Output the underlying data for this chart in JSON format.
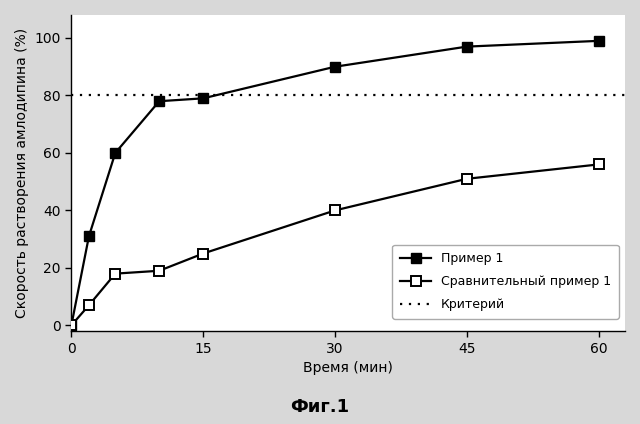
{
  "series1_x": [
    0,
    2,
    5,
    10,
    15,
    30,
    45,
    60
  ],
  "series1_y": [
    0,
    31,
    60,
    78,
    79,
    90,
    97,
    99
  ],
  "series2_x": [
    0,
    2,
    5,
    10,
    15,
    30,
    45,
    60
  ],
  "series2_y": [
    0,
    7,
    18,
    19,
    25,
    40,
    51,
    56
  ],
  "criterion_y": 80,
  "xlabel": "Время (мин)",
  "ylabel": "Скорость растворения амлодипина (%)",
  "title": "Фиг.1",
  "legend_series1": "Пример 1",
  "legend_series2": "Сравнительный пример 1",
  "legend_criterion": "Критерий",
  "xlim": [
    0,
    63
  ],
  "ylim": [
    -2,
    108
  ],
  "xticks": [
    0,
    15,
    30,
    45,
    60
  ],
  "yticks": [
    0,
    20,
    40,
    60,
    80,
    100
  ],
  "bg_color": "#ffffff",
  "fig_bg_color": "#d8d8d8",
  "line_color": "#000000",
  "marker_size": 7,
  "linewidth": 1.6,
  "title_fontsize": 13,
  "axis_label_fontsize": 10,
  "tick_fontsize": 10,
  "legend_fontsize": 9
}
